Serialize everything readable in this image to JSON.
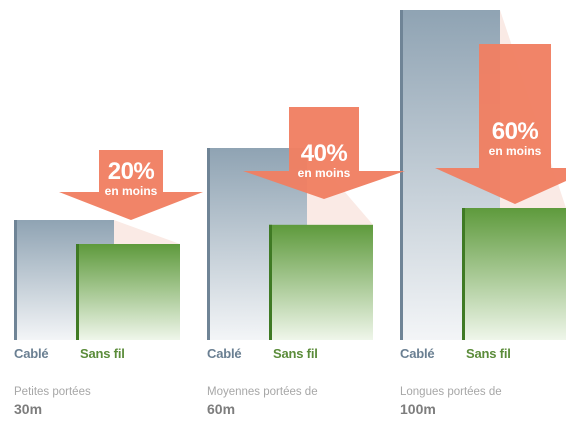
{
  "chart_data": {
    "type": "bar",
    "categories": [
      "Petites portées 30m",
      "Moyennes portées de 60m",
      "Longues portées de 100m"
    ],
    "series": [
      {
        "name": "Cablé",
        "values": [
          100,
          100,
          100
        ]
      },
      {
        "name": "Sans fil",
        "values": [
          80,
          60,
          40
        ]
      }
    ],
    "groups": [
      {
        "desc": "Petites portées",
        "dist": "30m",
        "cable_label": "Cablé",
        "wireless_label": "Sans fil",
        "reduction": "20%",
        "less": "en moins"
      },
      {
        "desc": "Moyennes portées de",
        "dist": "60m",
        "cable_label": "Cablé",
        "wireless_label": "Sans fil",
        "reduction": "40%",
        "less": "en moins"
      },
      {
        "desc": "Longues portées de",
        "dist": "100m",
        "cable_label": "Cablé",
        "wireless_label": "Sans fil",
        "reduction": "60%",
        "less": "en moins"
      }
    ],
    "colors": {
      "cable_top": "#8fa3b3",
      "cable_bottom": "#f3f5f7",
      "wireless_top": "#5e9a3c",
      "wireless_bottom": "#eff6ea",
      "arrow": "#f07f62",
      "cable_label": "#6a7f92",
      "wireless_label": "#5b8c3a"
    },
    "title": "",
    "xlabel": "",
    "ylabel": "",
    "grid": false,
    "legend": "none"
  }
}
